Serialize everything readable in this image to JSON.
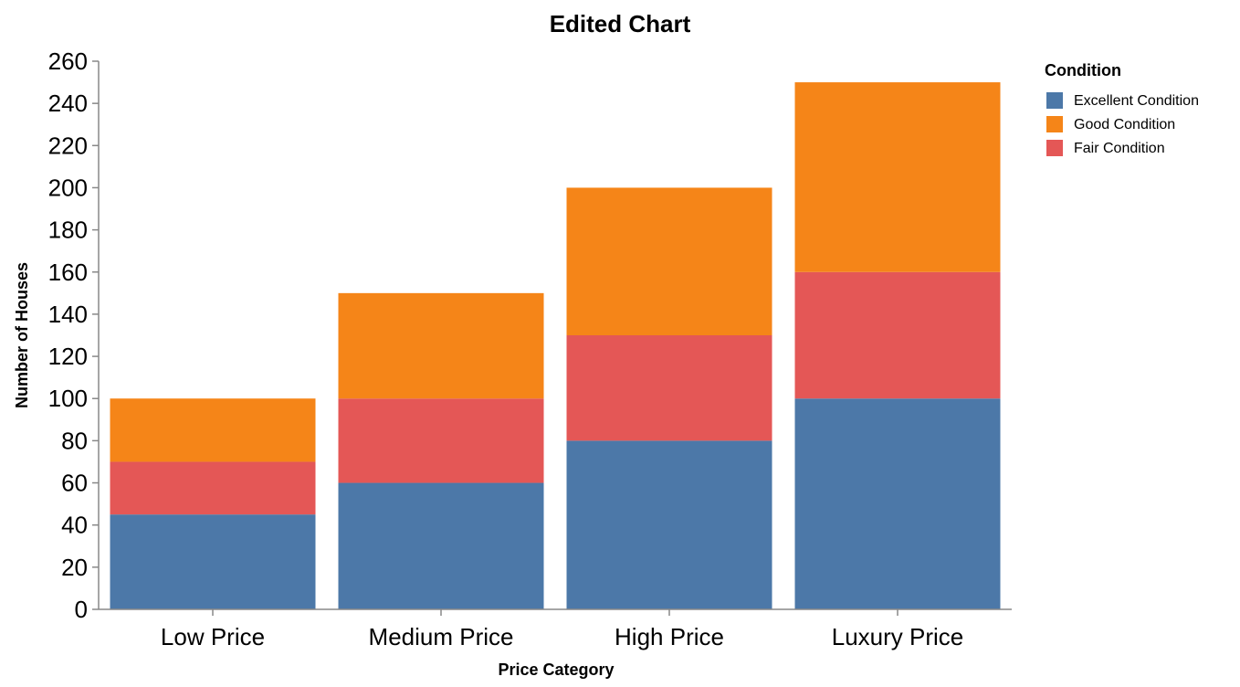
{
  "chart_data": {
    "type": "bar",
    "stacked": true,
    "title": "Edited Chart",
    "xlabel": "Price Category",
    "ylabel": "Number of Houses",
    "categories": [
      "Low Price",
      "Medium Price",
      "High Price",
      "Luxury Price"
    ],
    "series": [
      {
        "name": "Excellent Condition",
        "values": [
          45,
          60,
          80,
          100
        ],
        "color": "#4c78a8"
      },
      {
        "name": "Fair Condition",
        "values": [
          25,
          40,
          50,
          60
        ],
        "color": "#e45756"
      },
      {
        "name": "Good Condition",
        "values": [
          30,
          50,
          70,
          90
        ],
        "color": "#f58518"
      }
    ],
    "ylim": [
      0,
      260
    ],
    "yticks": [
      "0",
      "20",
      "40",
      "60",
      "80",
      "100",
      "120",
      "140",
      "160",
      "180",
      "200",
      "220",
      "240",
      "260"
    ],
    "grid": false,
    "legend": {
      "title": "Condition",
      "placement": "top-right",
      "entries": [
        {
          "label": "Excellent Condition",
          "color": "#4c78a8"
        },
        {
          "label": "Good Condition",
          "color": "#f58518"
        },
        {
          "label": "Fair Condition",
          "color": "#e45756"
        }
      ]
    }
  }
}
